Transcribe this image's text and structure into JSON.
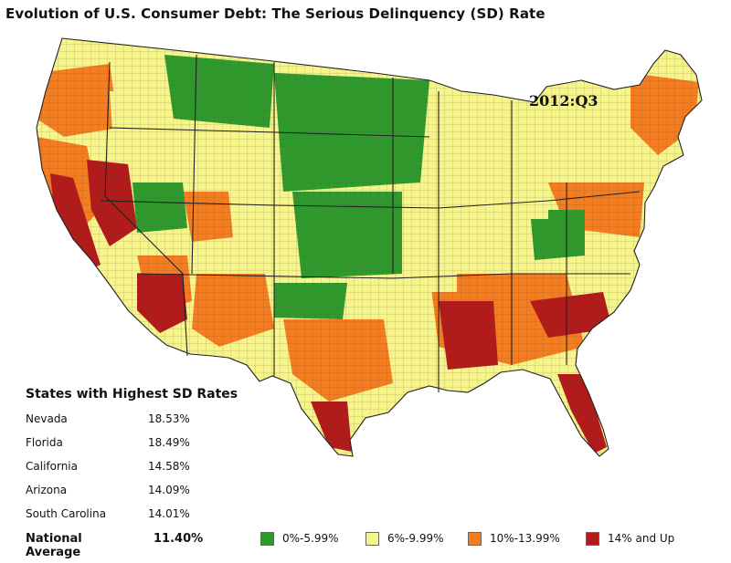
{
  "title": "Evolution of U.S. Consumer Debt: The Serious Delinquency (SD) Rate",
  "period": "2012:Q3",
  "colors": {
    "low": "#2e9a2c",
    "mid_low": "#f7f48a",
    "mid_high": "#f57c1f",
    "high": "#b51a1a",
    "boundary": "#222222"
  },
  "legend": [
    {
      "label": "0%-5.99%",
      "color": "#2e9a2c"
    },
    {
      "label": "6%-9.99%",
      "color": "#f7f48a"
    },
    {
      "label": "10%-13.99%",
      "color": "#f57c1f"
    },
    {
      "label": "14% and Up",
      "color": "#b51a1a"
    }
  ],
  "highest": {
    "title": "States with Highest SD Rates",
    "rows": [
      {
        "state": "Nevada",
        "rate": "18.53%"
      },
      {
        "state": "Florida",
        "rate": "18.49%"
      },
      {
        "state": "California",
        "rate": "14.58%"
      },
      {
        "state": "Arizona",
        "rate": "14.09%"
      },
      {
        "state": "South Carolina",
        "rate": "14.01%"
      }
    ]
  },
  "national": {
    "label": "National Average",
    "value": "11.40%"
  }
}
